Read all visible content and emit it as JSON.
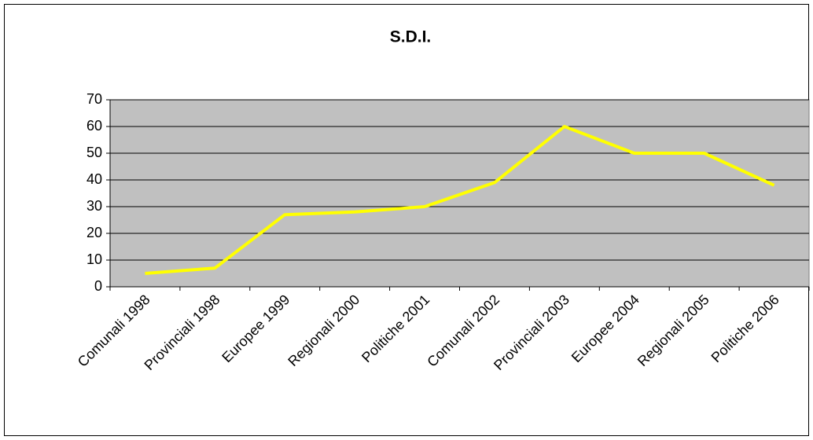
{
  "chart_data": {
    "type": "line",
    "title": "S.D.I.",
    "categories": [
      "Comunali 1998",
      "Provinciali 1998",
      "Europee 1999",
      "Regionali 2000",
      "Politiche 2001",
      "Comunali 2002",
      "Provinciali 2003",
      "Europee 2004",
      "Regionali 2005",
      "Politiche 2006"
    ],
    "values": [
      5,
      7,
      27,
      28,
      30,
      39,
      60,
      50,
      50,
      38
    ],
    "color": "#ffff00",
    "ylim": [
      0,
      70
    ],
    "yticks": [
      0,
      10,
      20,
      30,
      40,
      50,
      60,
      70
    ],
    "grid": true
  }
}
